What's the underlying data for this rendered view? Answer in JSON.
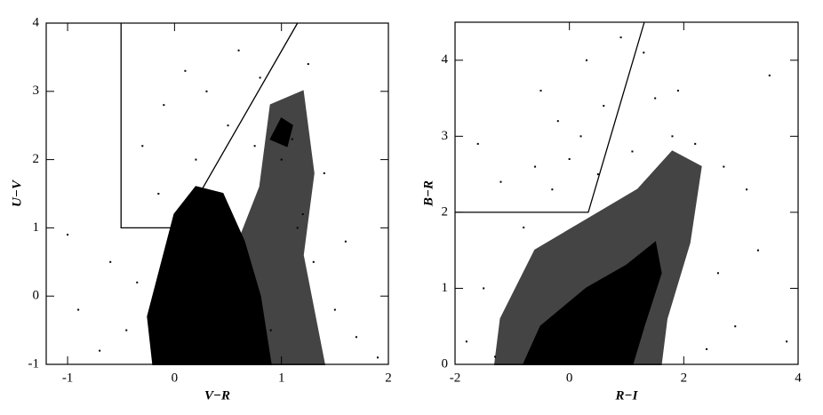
{
  "chart_data": [
    {
      "type": "scatter",
      "xlabel": "V−R",
      "ylabel": "U−V",
      "xlim": [
        -1.2,
        2
      ],
      "ylim": [
        -1,
        4
      ],
      "xticks": [
        -1,
        0,
        1,
        2
      ],
      "yticks": [
        -1,
        0,
        1,
        2,
        3,
        4
      ],
      "series": [
        {
          "color": "#000000",
          "x": [
            -0.6,
            -0.3,
            -0.1,
            0.1,
            0.3,
            0.6,
            0.8,
            1.05,
            0.95,
            1.1,
            1.0,
            1.2,
            1.3,
            1.5,
            1.7,
            1.4,
            1.25,
            0.75,
            -0.35,
            -0.45,
            -0.7,
            -0.15,
            0.2,
            -0.9,
            1.6,
            1.9,
            -1.0,
            0.5,
            1.15,
            0.9
          ],
          "values": [
            0.5,
            2.2,
            2.8,
            3.3,
            3.0,
            3.6,
            3.2,
            2.5,
            2.35,
            2.3,
            2.0,
            1.2,
            0.5,
            -0.2,
            -0.6,
            1.8,
            3.4,
            2.2,
            0.2,
            -0.5,
            -0.8,
            1.5,
            2.0,
            -0.2,
            0.8,
            -0.9,
            0.9,
            2.5,
            1.0,
            -0.5
          ]
        }
      ],
      "density_regions": [
        {
          "color": "#444444",
          "x": [
            0.5,
            0.8,
            0.9,
            1.2,
            1.3,
            1.2,
            1.4,
            0.9
          ],
          "y": [
            0.4,
            1.6,
            2.8,
            3.0,
            1.8,
            0.6,
            -1,
            -1
          ]
        },
        {
          "color": "#000000",
          "x": [
            -0.2,
            -0.25,
            -0.1,
            0.0,
            0.2,
            0.45,
            0.65,
            0.8,
            0.9
          ],
          "y": [
            -1,
            -0.3,
            0.6,
            1.2,
            1.6,
            1.5,
            0.8,
            0,
            -1
          ]
        },
        {
          "color": "#000000",
          "x": [
            0.9,
            1.0,
            1.1,
            1.05
          ],
          "y": [
            2.3,
            2.6,
            2.5,
            2.2
          ]
        }
      ],
      "boundary": {
        "x": [
          -0.5,
          -0.5,
          0.0,
          null,
          0.05,
          1.15
        ],
        "y": [
          4,
          1,
          1,
          null,
          1,
          4
        ]
      }
    },
    {
      "type": "scatter",
      "xlabel": "R−I",
      "ylabel": "B−R",
      "xlim": [
        -2,
        4
      ],
      "ylim": [
        0,
        4.5
      ],
      "xticks": [
        -2,
        0,
        2,
        4
      ],
      "yticks": [
        0,
        1,
        2,
        3,
        4
      ],
      "series": [
        {
          "color": "#000000",
          "x": [
            -1.5,
            -1.8,
            -1.2,
            -0.5,
            -0.2,
            0.3,
            0.6,
            0.9,
            1.5,
            2.2,
            2.7,
            3.1,
            3.5,
            3.3,
            2.6,
            0.0,
            -0.8,
            -0.3,
            1.1,
            1.8,
            -1.3,
            2.9,
            0.2,
            -0.6,
            1.3,
            2.4,
            -1.6,
            0.5,
            3.8,
            1.9
          ],
          "values": [
            1.0,
            0.3,
            2.4,
            3.6,
            3.2,
            4.0,
            3.4,
            4.3,
            3.5,
            2.9,
            2.6,
            2.3,
            3.8,
            1.5,
            1.2,
            2.7,
            1.8,
            2.3,
            2.8,
            3.0,
            0.1,
            0.5,
            3.0,
            2.6,
            4.1,
            0.2,
            2.9,
            2.5,
            0.3,
            3.6
          ]
        }
      ],
      "density_regions": [
        {
          "color": "#444444",
          "x": [
            -1.3,
            -1.2,
            -0.6,
            0.3,
            1.2,
            1.8,
            2.3,
            2.1,
            1.7,
            1.6
          ],
          "y": [
            0,
            0.6,
            1.5,
            1.9,
            2.3,
            2.8,
            2.6,
            1.6,
            0.6,
            0
          ]
        },
        {
          "color": "#000000",
          "x": [
            -0.8,
            -0.5,
            0.3,
            1.0,
            1.5,
            1.6,
            1.3,
            1.1
          ],
          "y": [
            0,
            0.5,
            1.0,
            1.3,
            1.6,
            1.2,
            0.5,
            0
          ]
        }
      ],
      "boundary": {
        "x": [
          -2,
          0.33,
          1.31
        ],
        "y": [
          2,
          2,
          4.5
        ]
      }
    }
  ]
}
